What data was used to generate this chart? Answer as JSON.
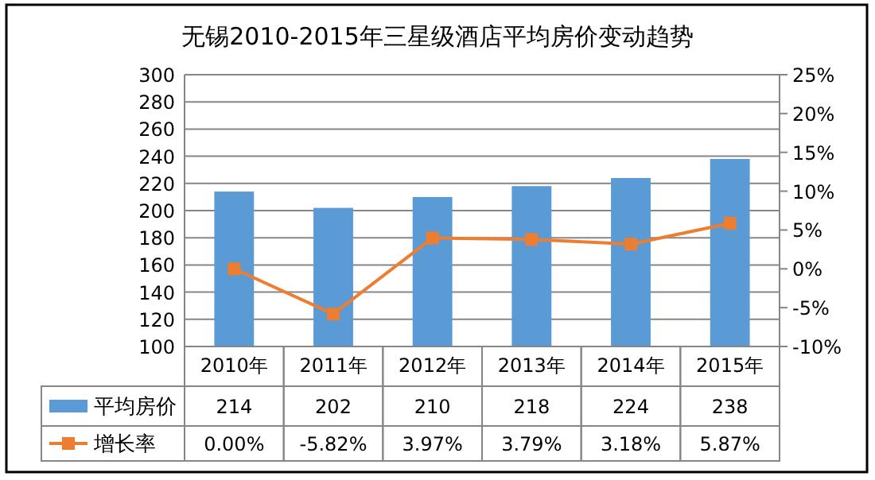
{
  "chart_data": {
    "type": "bar",
    "title": "无锡2010-2015年三星级酒店平均房价变动趋势",
    "categories": [
      "2010年",
      "2011年",
      "2012年",
      "2013年",
      "2014年",
      "2015年"
    ],
    "series": [
      {
        "name": "平均房价",
        "color": "#5b9bd5",
        "values": [
          214,
          202,
          210,
          218,
          224,
          238
        ],
        "value_labels": [
          "214",
          "202",
          "210",
          "218",
          "224",
          "238"
        ]
      },
      {
        "name": "增长率",
        "type": "line",
        "axis": "y2",
        "color": "#ed7d31",
        "marker": "square",
        "values": [
          0,
          -5.82,
          3.97,
          3.79,
          3.18,
          5.87
        ],
        "value_labels": [
          "0.00%",
          "-5.82%",
          "3.97%",
          "3.79%",
          "3.18%",
          "5.87%"
        ]
      }
    ],
    "ylim": [
      100,
      300
    ],
    "yticks": [
      100,
      120,
      140,
      160,
      180,
      200,
      220,
      240,
      260,
      280,
      300
    ],
    "y2lim": [
      -10,
      25
    ],
    "y2ticks": [
      {
        "value": -10,
        "label": "-10%"
      },
      {
        "value": -5,
        "label": "-5%"
      },
      {
        "value": 0,
        "label": "0%"
      },
      {
        "value": 5,
        "label": "5%"
      },
      {
        "value": 10,
        "label": "10%"
      },
      {
        "value": 15,
        "label": "15%"
      },
      {
        "value": 20,
        "label": "20%"
      },
      {
        "value": 25,
        "label": "25%"
      }
    ],
    "grid": "y",
    "legend": "bottom"
  }
}
